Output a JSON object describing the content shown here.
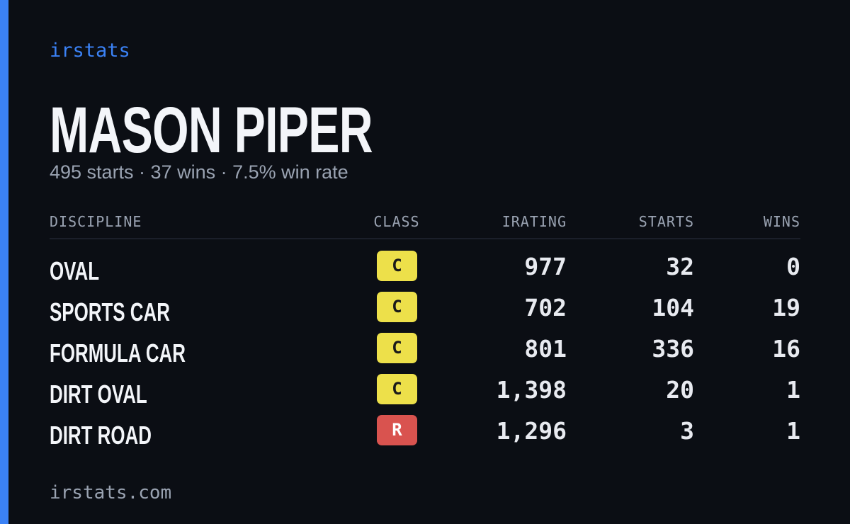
{
  "brand": "irstats",
  "title": "MASON PIPER",
  "summary": "495 starts · 37 wins · 7.5% win rate",
  "table": {
    "headers": [
      "DISCIPLINE",
      "CLASS",
      "IRATING",
      "STARTS",
      "WINS"
    ],
    "rows": [
      {
        "discipline": "OVAL",
        "class": "C",
        "class_color": "#ede04a",
        "irating": "977",
        "starts": "32",
        "wins": "0"
      },
      {
        "discipline": "SPORTS CAR",
        "class": "C",
        "class_color": "#ede04a",
        "irating": "702",
        "starts": "104",
        "wins": "19"
      },
      {
        "discipline": "FORMULA CAR",
        "class": "C",
        "class_color": "#ede04a",
        "irating": "801",
        "starts": "336",
        "wins": "16"
      },
      {
        "discipline": "DIRT OVAL",
        "class": "C",
        "class_color": "#ede04a",
        "irating": "1,398",
        "starts": "20",
        "wins": "1"
      },
      {
        "discipline": "DIRT ROAD",
        "class": "R",
        "class_color": "#d9534f",
        "irating": "1,296",
        "starts": "3",
        "wins": "1"
      }
    ]
  },
  "footer": "irstats.com"
}
